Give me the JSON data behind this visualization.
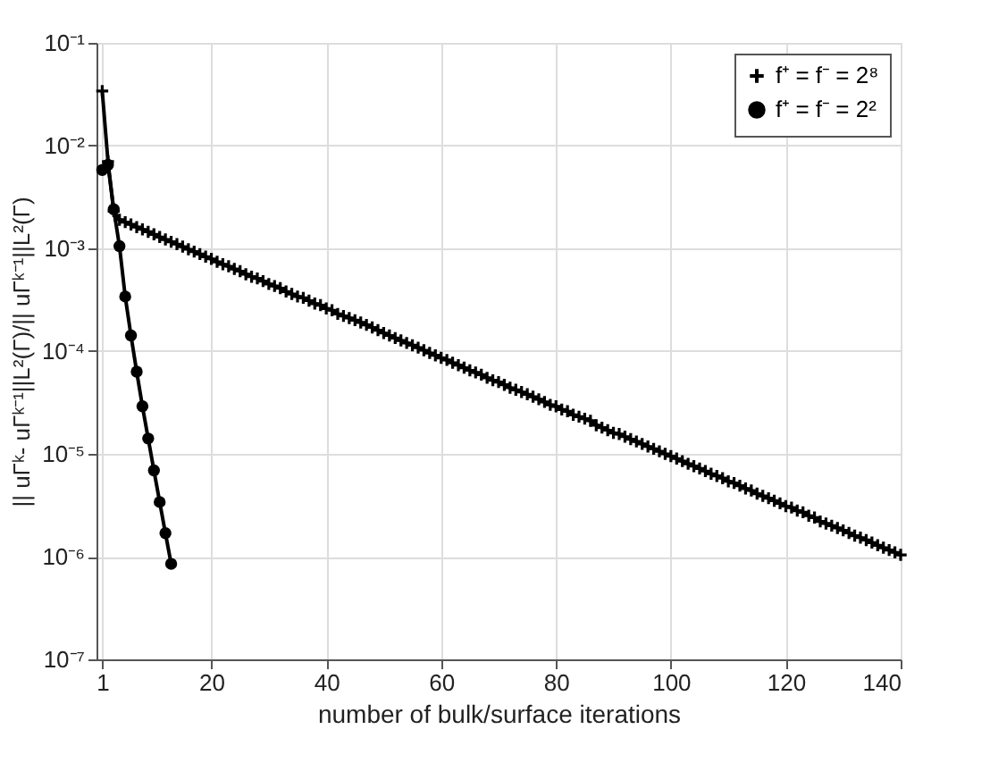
{
  "chart_data": {
    "type": "line",
    "xlabel": "number of bulk/surface iterations",
    "ylabel": "|| uΓᵏ- uΓᵏ⁻¹||L²(Γ)/|| uΓᵏ⁻¹||L²(Γ)",
    "log": "y",
    "grid": true,
    "legend": "top right",
    "line_style": "solid",
    "xlim": [
      0,
      140
    ],
    "xticks": [
      1,
      20,
      40,
      60,
      80,
      100,
      120,
      140
    ],
    "ylim": [
      1e-07,
      0.1
    ],
    "yticks": [
      {
        "value": 1e-07,
        "label": "10⁻⁷"
      },
      {
        "value": 1e-06,
        "label": "10⁻⁶"
      },
      {
        "value": 1e-05,
        "label": "10⁻⁵"
      },
      {
        "value": 0.0001,
        "label": "10⁻⁴"
      },
      {
        "value": 0.001,
        "label": "10⁻³"
      },
      {
        "value": 0.01,
        "label": "10⁻²"
      },
      {
        "value": 0.1,
        "label": "10⁻¹"
      }
    ],
    "series": [
      {
        "name": "f⁺ = f⁻ = 2⁸",
        "color": "#000000",
        "marker": "cross",
        "x": [
          1,
          2,
          3,
          4,
          5,
          6,
          7,
          8,
          9,
          10,
          11,
          12,
          13,
          14,
          15,
          16,
          17,
          18,
          19,
          20,
          21,
          22,
          23,
          24,
          25,
          26,
          27,
          28,
          29,
          30,
          31,
          32,
          33,
          34,
          35,
          36,
          37,
          38,
          39,
          40,
          41,
          42,
          43,
          44,
          45,
          46,
          47,
          48,
          49,
          50,
          51,
          52,
          53,
          54,
          55,
          56,
          57,
          58,
          59,
          60,
          61,
          62,
          63,
          64,
          65,
          66,
          67,
          68,
          69,
          70,
          71,
          72,
          73,
          74,
          75,
          76,
          77,
          78,
          79,
          80,
          81,
          82,
          83,
          84,
          85,
          86,
          87,
          88,
          89,
          90,
          91,
          92,
          93,
          94,
          95,
          96,
          97,
          98,
          99,
          100,
          101,
          102,
          103,
          104,
          105,
          106,
          107,
          108,
          109,
          110,
          111,
          112,
          113,
          114,
          115,
          116,
          117,
          118,
          119,
          120,
          121,
          122,
          123,
          124,
          125,
          126,
          127,
          128,
          129,
          130,
          131,
          132,
          133,
          134,
          135,
          136,
          137,
          138,
          139,
          140
        ],
        "values": [
          0.034,
          0.007,
          0.0023,
          0.0019,
          0.0018,
          0.00171,
          0.00161,
          0.00153,
          0.00145,
          0.00137,
          0.00129,
          0.00122,
          0.00116,
          0.0011,
          0.00104,
          0.00098,
          0.00093,
          0.00088,
          0.00083,
          0.00079,
          0.00074,
          0.0007,
          0.00067,
          0.00063,
          0.0006,
          0.00056,
          0.00053,
          0.00051,
          0.00048,
          0.00045,
          0.00043,
          0.00041,
          0.00038,
          0.00036,
          0.00034,
          0.00033,
          0.00031,
          0.00029,
          0.00028,
          0.00026,
          0.00025,
          0.00023,
          0.00022,
          0.00021,
          0.0002,
          0.00019,
          0.00018,
          0.00017,
          0.00016,
          0.00015,
          0.000142,
          0.000134,
          0.000127,
          0.00012,
          0.000114,
          0.000108,
          0.000102,
          9.6e-05,
          9.1e-05,
          8.6e-05,
          8.2e-05,
          7.7e-05,
          7.3e-05,
          6.9e-05,
          6.5e-05,
          6.2e-05,
          5.9e-05,
          5.5e-05,
          5.2e-05,
          5e-05,
          4.7e-05,
          4.4e-05,
          4.2e-05,
          4e-05,
          3.8e-05,
          3.6e-05,
          3.4e-05,
          3.2e-05,
          3e-05,
          2.9e-05,
          2.7e-05,
          2.6e-05,
          2.4e-05,
          2.3e-05,
          2.2e-05,
          2.1e-05,
          1.9e-05,
          1.8e-05,
          1.7e-05,
          1.6e-05,
          1.56e-05,
          1.47e-05,
          1.39e-05,
          1.32e-05,
          1.25e-05,
          1.18e-05,
          1.12e-05,
          1.06e-05,
          1e-05,
          9.5e-06,
          9e-06,
          8.5e-06,
          8e-06,
          7.6e-06,
          7.2e-06,
          6.8e-06,
          6.4e-06,
          6.1e-06,
          5.8e-06,
          5.4e-06,
          5.2e-06,
          4.9e-06,
          4.6e-06,
          4.4e-06,
          4.1e-06,
          3.9e-06,
          3.7e-06,
          3.5e-06,
          3.3e-06,
          3.1e-06,
          3e-06,
          2.8e-06,
          2.7e-06,
          2.5e-06,
          2.4e-06,
          2.2e-06,
          2.1e-06,
          2e-06,
          1.9e-06,
          1.8e-06,
          1.7e-06,
          1.6e-06,
          1.53e-06,
          1.45e-06,
          1.37e-06,
          1.29e-06,
          1.22e-06,
          1.16e-06,
          1.1e-06,
          1.04e-06
        ]
      },
      {
        "name": "f⁺ = f⁻ = 2²",
        "color": "#000000",
        "marker": "circle",
        "x": [
          1,
          2,
          3,
          4,
          5,
          6,
          7,
          8,
          9,
          10,
          11,
          12,
          13
        ],
        "values": [
          0.0058,
          0.0065,
          0.0024,
          0.00105,
          0.00034,
          0.000142,
          6.3e-05,
          2.9e-05,
          1.41e-05,
          6.9e-06,
          3.4e-06,
          1.69e-06,
          8.5e-07
        ]
      }
    ]
  }
}
